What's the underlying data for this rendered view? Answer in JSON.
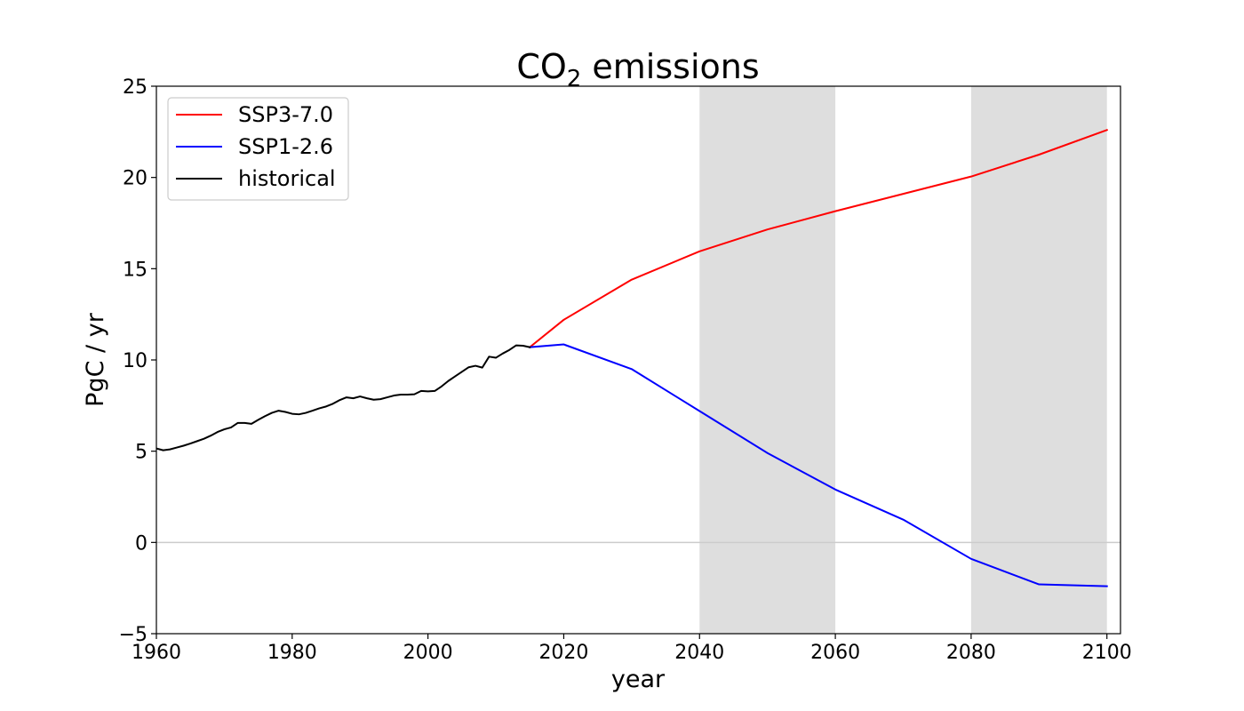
{
  "chart_data": {
    "type": "line",
    "title": {
      "main": "CO",
      "subscript": "2",
      "rest": " emissions"
    },
    "xlabel": "year",
    "ylabel": "PgC / yr",
    "xlim": [
      1960,
      2102
    ],
    "ylim": [
      -5,
      25
    ],
    "xticks": [
      1960,
      1980,
      2000,
      2020,
      2040,
      2060,
      2080,
      2100
    ],
    "yticks": [
      -5,
      0,
      5,
      10,
      15,
      20,
      25
    ],
    "ytick_labels": [
      "−5",
      "0",
      "5",
      "10",
      "15",
      "20",
      "25"
    ],
    "grid": false,
    "legend_position": "top-left",
    "shaded_periods": [
      [
        2040,
        2060
      ],
      [
        2080,
        2100
      ]
    ],
    "shade_color": "#dedede",
    "reference_line": {
      "y": 0,
      "color": "#cccccc"
    },
    "series": [
      {
        "name": "SSP3-7.0",
        "color": "#ff0000",
        "x": [
          2015,
          2020,
          2030,
          2040,
          2050,
          2060,
          2070,
          2080,
          2090,
          2100
        ],
        "y": [
          10.7,
          12.2,
          14.4,
          15.95,
          17.15,
          18.15,
          19.1,
          20.05,
          21.25,
          22.6
        ]
      },
      {
        "name": "SSP1-2.6",
        "color": "#0000ff",
        "x": [
          2015,
          2020,
          2030,
          2040,
          2050,
          2060,
          2070,
          2080,
          2090,
          2100
        ],
        "y": [
          10.7,
          10.85,
          9.5,
          7.2,
          4.9,
          2.9,
          1.25,
          -0.9,
          -2.3,
          -2.4
        ]
      },
      {
        "name": "historical",
        "color": "#000000",
        "x": [
          1959,
          1960,
          1961,
          1962,
          1963,
          1964,
          1965,
          1966,
          1967,
          1968,
          1969,
          1970,
          1971,
          1972,
          1973,
          1974,
          1975,
          1976,
          1977,
          1978,
          1979,
          1980,
          1981,
          1982,
          1983,
          1984,
          1985,
          1986,
          1987,
          1988,
          1989,
          1990,
          1991,
          1992,
          1993,
          1994,
          1995,
          1996,
          1997,
          1998,
          1999,
          2000,
          2001,
          2002,
          2003,
          2004,
          2005,
          2006,
          2007,
          2008,
          2009,
          2010,
          2011,
          2012,
          2013,
          2014,
          2015
        ],
        "y": [
          4.95,
          5.15,
          5.05,
          5.1,
          5.2,
          5.3,
          5.42,
          5.55,
          5.68,
          5.85,
          6.05,
          6.2,
          6.3,
          6.55,
          6.55,
          6.5,
          6.72,
          6.92,
          7.1,
          7.22,
          7.15,
          7.05,
          7.02,
          7.1,
          7.22,
          7.35,
          7.45,
          7.6,
          7.8,
          7.95,
          7.9,
          8.0,
          7.9,
          7.82,
          7.85,
          7.95,
          8.05,
          8.1,
          8.1,
          8.12,
          8.3,
          8.28,
          8.3,
          8.55,
          8.85,
          9.1,
          9.35,
          9.6,
          9.68,
          9.58,
          10.18,
          10.12,
          10.35,
          10.55,
          10.8,
          10.78,
          10.7
        ]
      }
    ]
  }
}
